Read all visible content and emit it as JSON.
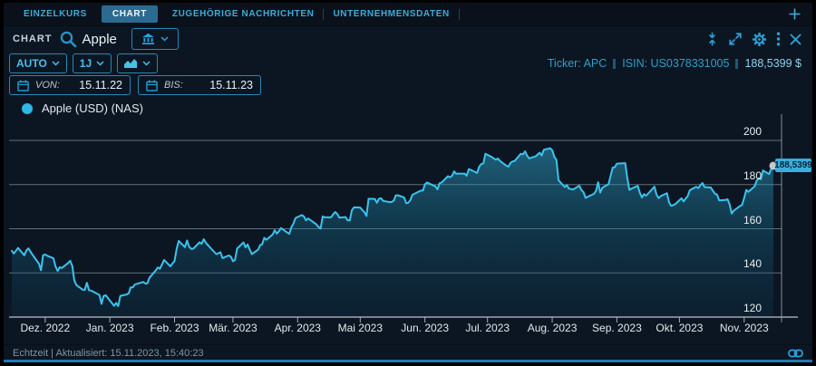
{
  "tabs": {
    "items": [
      {
        "label": "EINZELKURS",
        "active": false
      },
      {
        "label": "CHART",
        "active": true
      },
      {
        "label": "ZUGEHÖRIGE NACHRICHTEN",
        "active": false
      },
      {
        "label": "UNTERNEHMENSDATEN",
        "active": false
      }
    ]
  },
  "header": {
    "panel_label": "CHART",
    "search_value": "Apple",
    "icons": [
      "search-icon",
      "bank-icon",
      "chevron-down-icon",
      "collapse-vertical-icon",
      "expand-icon",
      "gear-icon",
      "kebab-menu-icon",
      "close-icon",
      "plus-icon"
    ]
  },
  "controls": {
    "mode": "AUTO",
    "range": "1J",
    "chart_type_icon": "area-chart-icon"
  },
  "dates": {
    "from_label": "VON:",
    "from_value": "15.11.22",
    "to_label": "BIS:",
    "to_value": "15.11.23"
  },
  "instrument": {
    "ticker": "Ticker: APC",
    "isin": "ISIN: US0378331005",
    "price": "188,5399 $"
  },
  "legend": {
    "label": "Apple (USD) (NAS)",
    "dot_color": "#2cb9e6"
  },
  "footer": {
    "status": "Echtzeit | Aktualisiert: 15.11.2023, 15:40:23"
  },
  "chart_data": {
    "type": "area",
    "title": "Apple (USD) (NAS)",
    "x_range": [
      "15.11.2022",
      "15.11.2023"
    ],
    "x_days": 365,
    "ylim": [
      120,
      211.1
    ],
    "y_ticks": [
      120,
      140,
      160,
      180,
      200
    ],
    "grid": "horizontal",
    "legend_position": "top-left",
    "line_color": "#3ac3ee",
    "fill_top_color": "#3bb9e4",
    "fill_bottom_color": "#0f4a6b",
    "last_value": 188.5399,
    "last_label": "188,5399",
    "month_ticks": [
      {
        "day": 16,
        "label": "Dez. 2022"
      },
      {
        "day": 47,
        "label": "Jan. 2023"
      },
      {
        "day": 78,
        "label": "Feb. 2023"
      },
      {
        "day": 106,
        "label": "Mär. 2023"
      },
      {
        "day": 137,
        "label": "Apr. 2023"
      },
      {
        "day": 167,
        "label": "Mai 2023"
      },
      {
        "day": 198,
        "label": "Jun. 2023"
      },
      {
        "day": 228,
        "label": "Jul. 2023"
      },
      {
        "day": 259,
        "label": "Aug. 2023"
      },
      {
        "day": 290,
        "label": "Sep. 2023"
      },
      {
        "day": 320,
        "label": "Okt. 2023"
      },
      {
        "day": 351,
        "label": "Nov. 2023"
      }
    ],
    "series": [
      {
        "name": "Apple (USD) (NAS)",
        "points": [
          [
            0,
            150.0
          ],
          [
            1,
            148.8
          ],
          [
            3,
            151.3
          ],
          [
            6,
            148.0
          ],
          [
            7,
            150.2
          ],
          [
            8,
            151.1
          ],
          [
            10,
            148.1
          ],
          [
            13,
            144.2
          ],
          [
            14,
            141.2
          ],
          [
            15,
            148.0
          ],
          [
            16,
            148.3
          ],
          [
            17,
            147.8
          ],
          [
            20,
            146.6
          ],
          [
            21,
            142.9
          ],
          [
            22,
            140.9
          ],
          [
            23,
            142.6
          ],
          [
            24,
            142.2
          ],
          [
            27,
            144.5
          ],
          [
            28,
            145.5
          ],
          [
            29,
            143.2
          ],
          [
            30,
            136.5
          ],
          [
            31,
            134.5
          ],
          [
            34,
            132.4
          ],
          [
            35,
            132.3
          ],
          [
            36,
            135.5
          ],
          [
            37,
            132.2
          ],
          [
            38,
            132.0
          ],
          [
            42,
            130.0
          ],
          [
            43,
            126.0
          ],
          [
            44,
            129.6
          ],
          [
            45,
            129.9
          ],
          [
            49,
            125.1
          ],
          [
            50,
            126.4
          ],
          [
            51,
            125.0
          ],
          [
            52,
            129.6
          ],
          [
            55,
            130.2
          ],
          [
            56,
            130.7
          ],
          [
            57,
            133.5
          ],
          [
            58,
            133.4
          ],
          [
            59,
            134.8
          ],
          [
            63,
            135.9
          ],
          [
            64,
            135.2
          ],
          [
            65,
            135.3
          ],
          [
            66,
            137.9
          ],
          [
            69,
            141.1
          ],
          [
            70,
            142.5
          ],
          [
            71,
            141.9
          ],
          [
            72,
            143.9
          ],
          [
            73,
            145.9
          ],
          [
            76,
            143.0
          ],
          [
            77,
            144.3
          ],
          [
            78,
            145.4
          ],
          [
            79,
            150.8
          ],
          [
            80,
            154.5
          ],
          [
            83,
            151.7
          ],
          [
            84,
            154.7
          ],
          [
            85,
            151.9
          ],
          [
            86,
            150.9
          ],
          [
            87,
            151.0
          ],
          [
            90,
            153.9
          ],
          [
            91,
            153.2
          ],
          [
            92,
            155.3
          ],
          [
            93,
            153.7
          ],
          [
            94,
            152.6
          ],
          [
            98,
            148.5
          ],
          [
            99,
            148.9
          ],
          [
            100,
            149.4
          ],
          [
            101,
            146.7
          ],
          [
            104,
            147.9
          ],
          [
            105,
            147.4
          ],
          [
            106,
            145.3
          ],
          [
            107,
            145.9
          ],
          [
            108,
            151.0
          ],
          [
            111,
            153.8
          ],
          [
            112,
            151.6
          ],
          [
            113,
            152.9
          ],
          [
            114,
            150.6
          ],
          [
            115,
            148.5
          ],
          [
            118,
            150.5
          ],
          [
            119,
            152.6
          ],
          [
            120,
            153.0
          ],
          [
            121,
            155.9
          ],
          [
            122,
            155.0
          ],
          [
            125,
            157.4
          ],
          [
            126,
            159.3
          ],
          [
            127,
            157.8
          ],
          [
            128,
            158.9
          ],
          [
            129,
            160.3
          ],
          [
            132,
            158.3
          ],
          [
            133,
            157.7
          ],
          [
            134,
            160.8
          ],
          [
            135,
            162.4
          ],
          [
            136,
            164.9
          ],
          [
            139,
            166.2
          ],
          [
            140,
            165.6
          ],
          [
            141,
            163.8
          ],
          [
            142,
            164.7
          ],
          [
            146,
            162.0
          ],
          [
            147,
            160.8
          ],
          [
            148,
            160.1
          ],
          [
            149,
            165.6
          ],
          [
            150,
            165.2
          ],
          [
            153,
            165.2
          ],
          [
            154,
            166.5
          ],
          [
            155,
            167.6
          ],
          [
            156,
            166.7
          ],
          [
            157,
            165.0
          ],
          [
            160,
            165.3
          ],
          [
            161,
            163.8
          ],
          [
            162,
            163.8
          ],
          [
            163,
            168.4
          ],
          [
            164,
            169.7
          ],
          [
            167,
            169.6
          ],
          [
            168,
            168.5
          ],
          [
            169,
            167.5
          ],
          [
            170,
            165.8
          ],
          [
            171,
            173.6
          ],
          [
            174,
            173.5
          ],
          [
            175,
            171.8
          ],
          [
            176,
            173.6
          ],
          [
            177,
            173.8
          ],
          [
            178,
            172.6
          ],
          [
            181,
            172.1
          ],
          [
            182,
            172.1
          ],
          [
            183,
            172.7
          ],
          [
            184,
            175.1
          ],
          [
            185,
            175.2
          ],
          [
            188,
            174.2
          ],
          [
            189,
            171.6
          ],
          [
            190,
            171.8
          ],
          [
            191,
            173.0
          ],
          [
            192,
            175.4
          ],
          [
            196,
            177.3
          ],
          [
            197,
            177.3
          ],
          [
            198,
            180.1
          ],
          [
            199,
            181.0
          ],
          [
            202,
            179.6
          ],
          [
            203,
            179.2
          ],
          [
            204,
            177.8
          ],
          [
            205,
            180.6
          ],
          [
            206,
            181.0
          ],
          [
            209,
            183.8
          ],
          [
            210,
            183.3
          ],
          [
            211,
            184.0
          ],
          [
            212,
            186.0
          ],
          [
            213,
            184.9
          ],
          [
            217,
            185.0
          ],
          [
            218,
            184.0
          ],
          [
            219,
            187.0
          ],
          [
            220,
            186.7
          ],
          [
            223,
            185.3
          ],
          [
            224,
            188.1
          ],
          [
            225,
            189.3
          ],
          [
            226,
            189.6
          ],
          [
            227,
            194.0
          ],
          [
            230,
            192.5
          ],
          [
            232,
            191.3
          ],
          [
            233,
            191.8
          ],
          [
            234,
            190.7
          ],
          [
            237,
            188.6
          ],
          [
            238,
            188.1
          ],
          [
            239,
            189.8
          ],
          [
            240,
            190.5
          ],
          [
            241,
            190.7
          ],
          [
            244,
            194.0
          ],
          [
            245,
            193.7
          ],
          [
            246,
            195.1
          ],
          [
            247,
            193.1
          ],
          [
            248,
            191.9
          ],
          [
            251,
            192.8
          ],
          [
            252,
            193.6
          ],
          [
            253,
            194.5
          ],
          [
            254,
            193.2
          ],
          [
            255,
            195.8
          ],
          [
            258,
            196.5
          ],
          [
            259,
            195.6
          ],
          [
            260,
            192.6
          ],
          [
            261,
            191.2
          ],
          [
            262,
            182.0
          ],
          [
            265,
            178.9
          ],
          [
            266,
            179.8
          ],
          [
            267,
            178.2
          ],
          [
            268,
            178.0
          ],
          [
            269,
            177.8
          ],
          [
            272,
            179.5
          ],
          [
            273,
            177.5
          ],
          [
            274,
            176.6
          ],
          [
            275,
            174.0
          ],
          [
            276,
            174.5
          ],
          [
            279,
            175.8
          ],
          [
            280,
            177.2
          ],
          [
            281,
            181.1
          ],
          [
            282,
            176.4
          ],
          [
            283,
            178.6
          ],
          [
            286,
            180.2
          ],
          [
            287,
            184.1
          ],
          [
            288,
            187.7
          ],
          [
            289,
            187.9
          ],
          [
            290,
            189.5
          ],
          [
            294,
            189.7
          ],
          [
            295,
            182.9
          ],
          [
            296,
            177.6
          ],
          [
            297,
            178.2
          ],
          [
            300,
            179.4
          ],
          [
            301,
            176.3
          ],
          [
            302,
            174.2
          ],
          [
            303,
            175.7
          ],
          [
            304,
            175.0
          ],
          [
            307,
            178.0
          ],
          [
            308,
            179.1
          ],
          [
            309,
            175.5
          ],
          [
            310,
            173.9
          ],
          [
            311,
            174.8
          ],
          [
            314,
            176.1
          ],
          [
            315,
            172.0
          ],
          [
            316,
            170.4
          ],
          [
            317,
            170.7
          ],
          [
            318,
            171.2
          ],
          [
            321,
            173.8
          ],
          [
            322,
            172.4
          ],
          [
            323,
            173.7
          ],
          [
            324,
            174.9
          ],
          [
            325,
            177.5
          ],
          [
            328,
            179.0
          ],
          [
            329,
            178.4
          ],
          [
            330,
            179.8
          ],
          [
            331,
            180.7
          ],
          [
            332,
            178.9
          ],
          [
            335,
            178.7
          ],
          [
            336,
            177.2
          ],
          [
            337,
            175.8
          ],
          [
            338,
            175.5
          ],
          [
            339,
            172.9
          ],
          [
            342,
            173.0
          ],
          [
            343,
            173.4
          ],
          [
            344,
            171.1
          ],
          [
            345,
            166.9
          ],
          [
            346,
            168.2
          ],
          [
            349,
            170.3
          ],
          [
            350,
            170.8
          ],
          [
            351,
            174.0
          ],
          [
            352,
            177.6
          ],
          [
            353,
            176.7
          ],
          [
            356,
            179.2
          ],
          [
            357,
            181.8
          ],
          [
            358,
            182.9
          ],
          [
            359,
            182.4
          ],
          [
            360,
            186.4
          ],
          [
            363,
            184.8
          ],
          [
            364,
            187.4
          ],
          [
            365,
            188.54
          ]
        ]
      }
    ]
  }
}
